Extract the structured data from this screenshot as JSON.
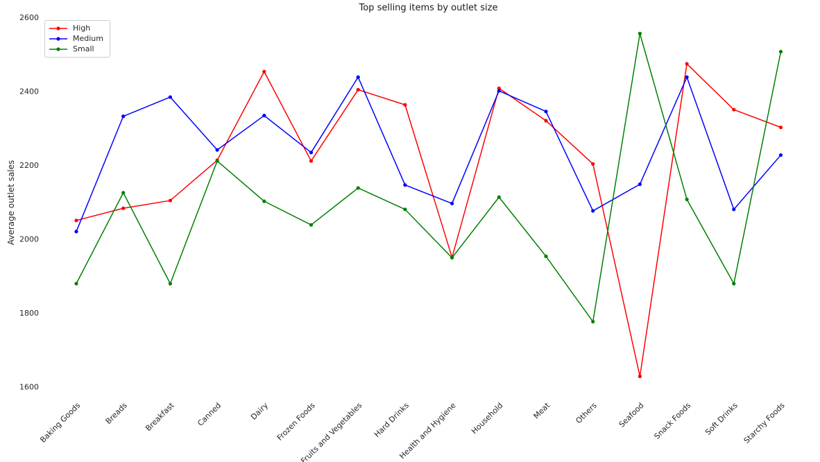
{
  "figure": {
    "background": "#ffffff",
    "text_color": "#262626"
  },
  "chart_data": {
    "type": "line",
    "title": "Top selling items by outlet size",
    "xlabel": "",
    "ylabel": "Average outlet sales",
    "categories": [
      "Baking Goods",
      "Breads",
      "Breakfast",
      "Canned",
      "Dairy",
      "Frozen Foods",
      "Fruits and Vegetables",
      "Hard Drinks",
      "Health and Hygiene",
      "Household",
      "Meat",
      "Others",
      "Seafood",
      "Snack Foods",
      "Soft Drinks",
      "Starchy Foods"
    ],
    "series": [
      {
        "name": "High",
        "color": "#ff0000",
        "values": [
          2052,
          2085,
          2106,
          2215,
          2455,
          2213,
          2406,
          2365,
          1952,
          2410,
          2322,
          2205,
          1630,
          2476,
          2352,
          2304
        ]
      },
      {
        "name": "Medium",
        "color": "#0000ff",
        "values": [
          2022,
          2334,
          2386,
          2243,
          2336,
          2236,
          2440,
          2148,
          2098,
          2403,
          2347,
          2078,
          2150,
          2440,
          2082,
          2229
        ]
      },
      {
        "name": "Small",
        "color": "#008000",
        "values": [
          1881,
          2127,
          1881,
          2213,
          2104,
          2040,
          2140,
          2082,
          1951,
          2115,
          1955,
          1778,
          2558,
          2109,
          1881,
          2509
        ]
      }
    ],
    "y_ticks": [
      1600,
      1800,
      2000,
      2200,
      2400,
      2600
    ],
    "ylim": [
      1588,
      2620
    ],
    "grid": false,
    "legend": {
      "position": "upper left",
      "entries": [
        "High",
        "Medium",
        "Small"
      ]
    },
    "x_tick_rotation": 45,
    "marker": "dot"
  }
}
